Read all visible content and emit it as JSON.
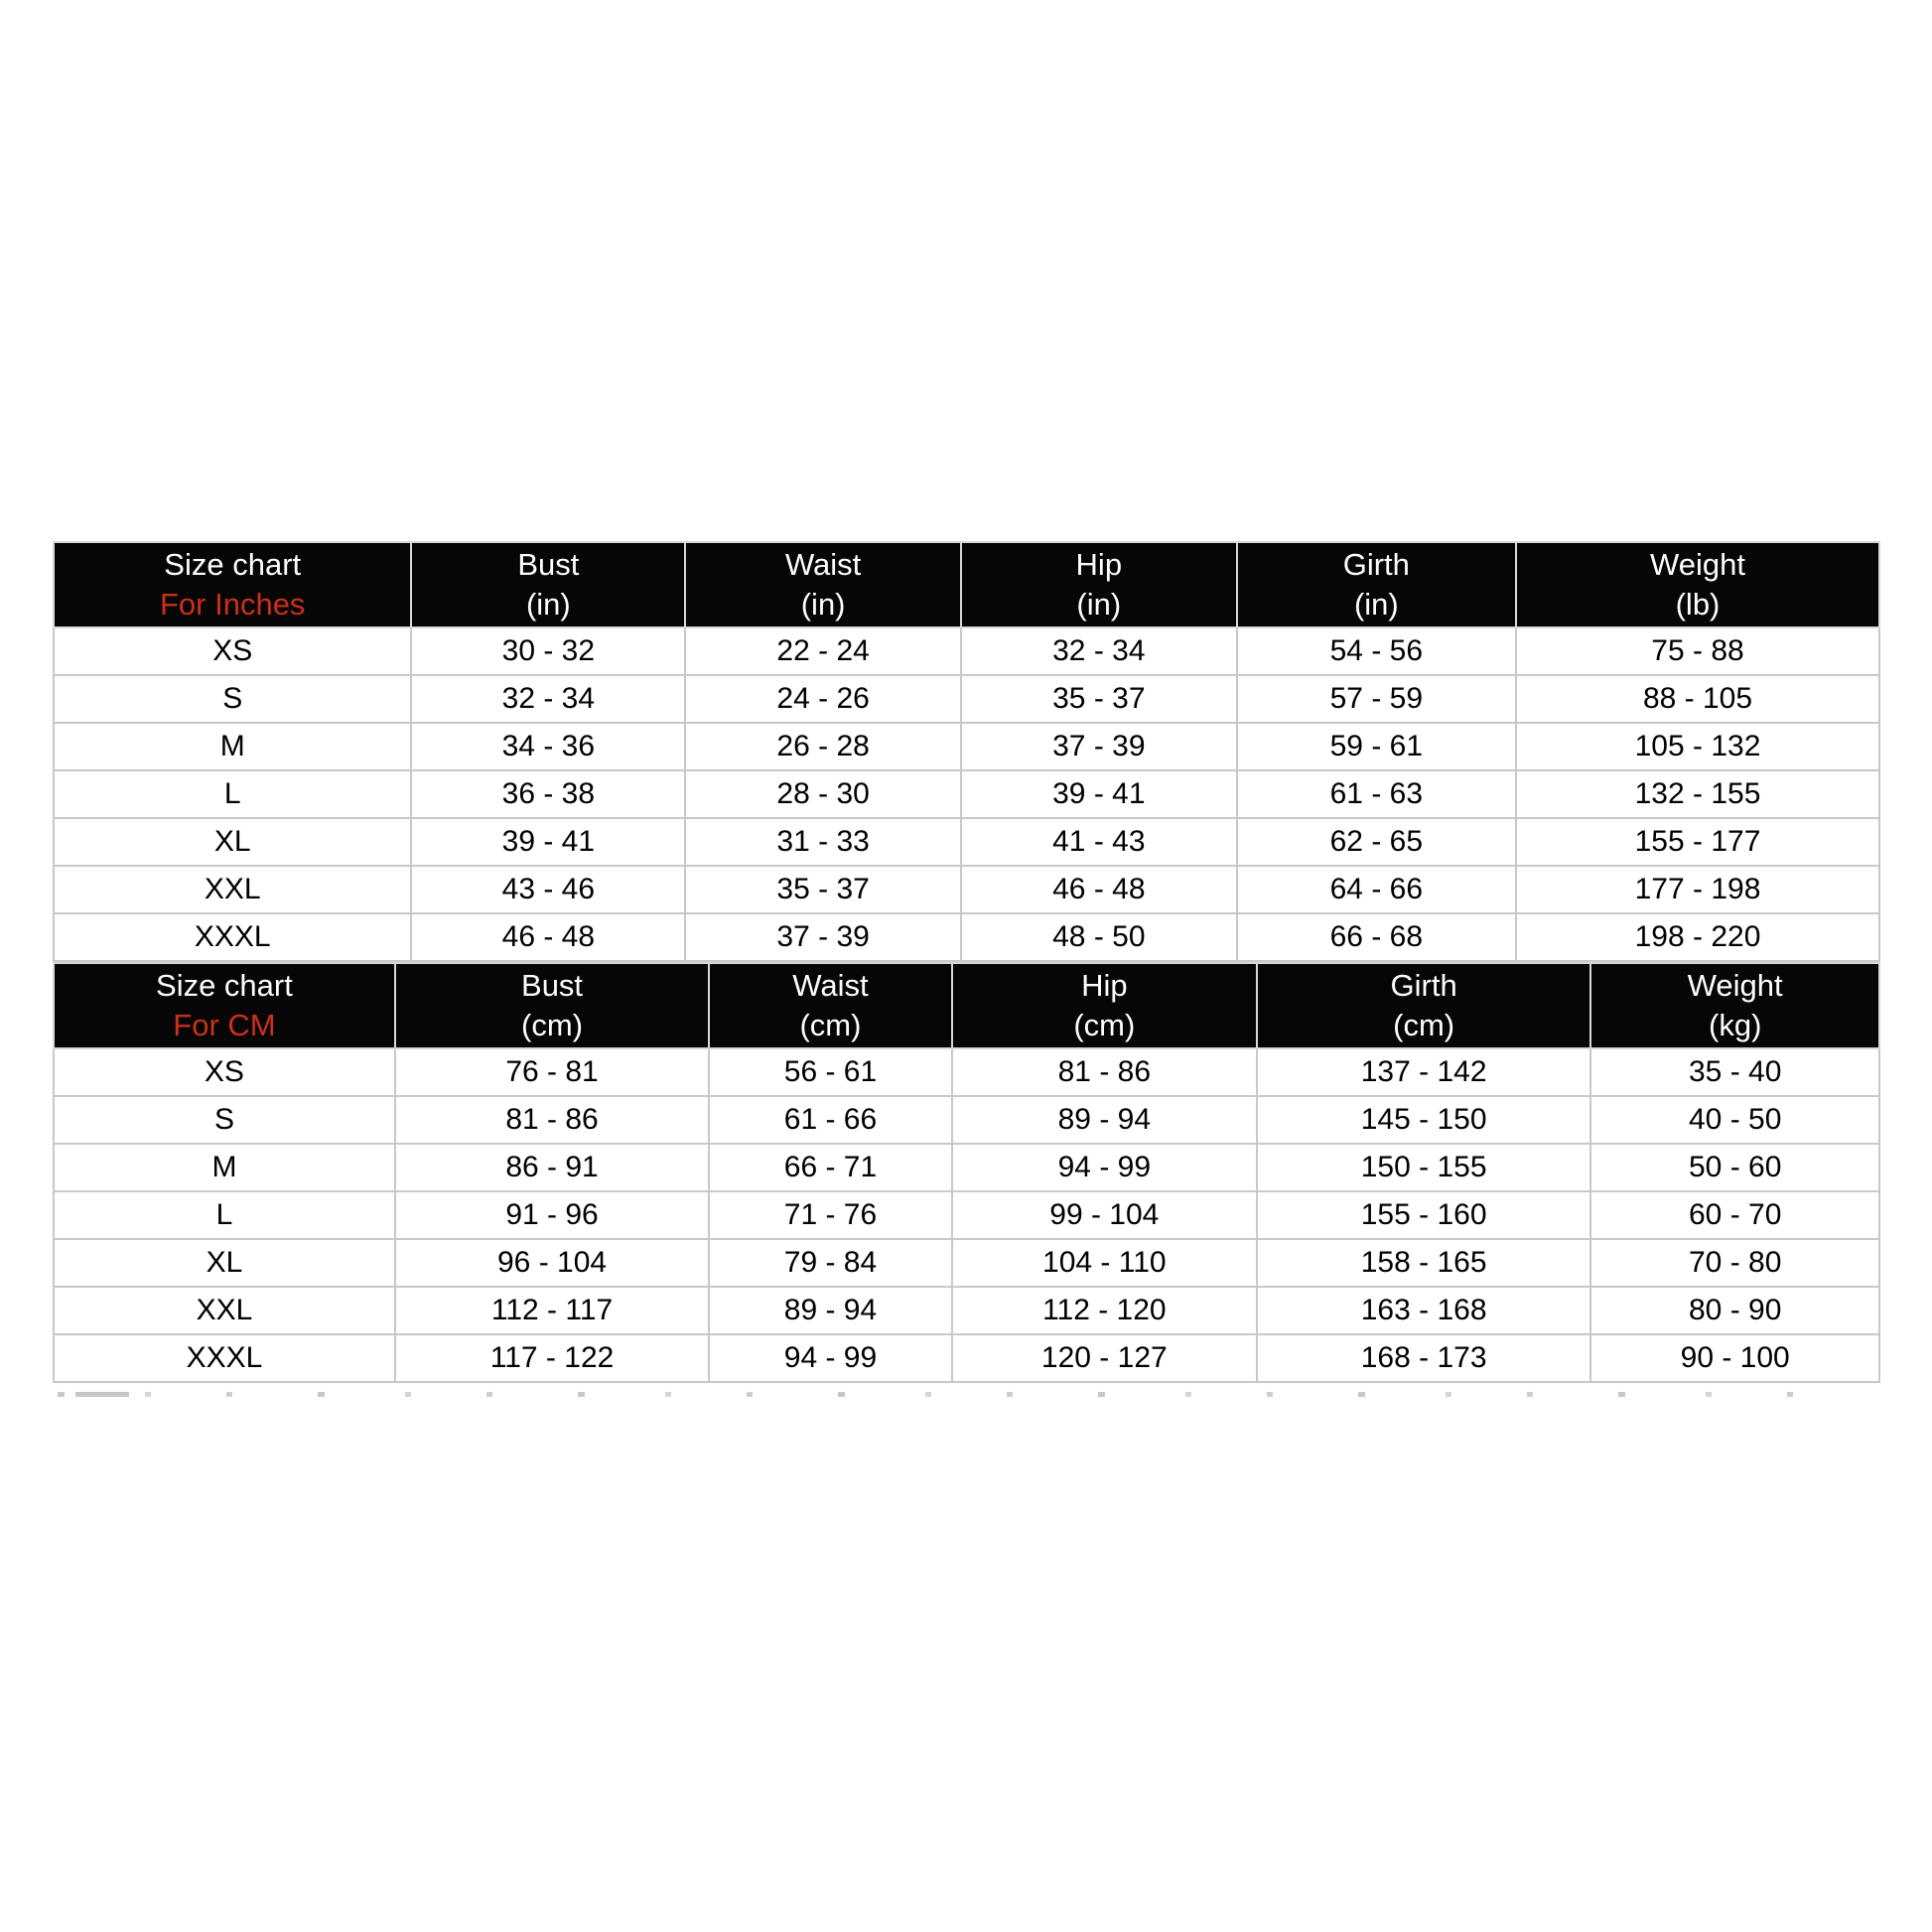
{
  "page": {
    "background_color": "#ffffff"
  },
  "colors": {
    "header_bg": "#060606",
    "header_text": "#ffffff",
    "accent_red": "#cc3018",
    "grid_line": "#c8c8c8",
    "cell_text": "#000000"
  },
  "tables": [
    {
      "name": "inches",
      "title_line1": "Size chart",
      "title_line2": "For Inches",
      "columns": [
        {
          "label": "Bust",
          "unit": "(in)"
        },
        {
          "label": "Waist",
          "unit": "(in)"
        },
        {
          "label": "Hip",
          "unit": "(in)"
        },
        {
          "label": "Girth",
          "unit": "(in)"
        },
        {
          "label": "Weight",
          "unit": "(lb)"
        }
      ],
      "col_widths": [
        "19.6%",
        "15.0%",
        "15.1%",
        "15.1%",
        "15.3%",
        "19.9%"
      ],
      "rows": [
        {
          "size": "XS",
          "values": [
            "30 - 32",
            "22 - 24",
            "32 - 34",
            "54 - 56",
            "75 - 88"
          ]
        },
        {
          "size": "S",
          "values": [
            "32 - 34",
            "24 - 26",
            "35 - 37",
            "57 - 59",
            "88 - 105"
          ]
        },
        {
          "size": "M",
          "values": [
            "34 - 36",
            "26 - 28",
            "37 - 39",
            "59 - 61",
            "105 - 132"
          ]
        },
        {
          "size": "L",
          "values": [
            "36 - 38",
            "28 - 30",
            "39 - 41",
            "61 - 63",
            "132 - 155"
          ]
        },
        {
          "size": "XL",
          "values": [
            "39 - 41",
            "31 - 33",
            "41 - 43",
            "62 - 65",
            "155 - 177"
          ]
        },
        {
          "size": "XXL",
          "values": [
            "43 - 46",
            "35 - 37",
            "46 - 48",
            "64 - 66",
            "177 - 198"
          ]
        },
        {
          "size": "XXXL",
          "values": [
            "46 - 48",
            "37 - 39",
            "48 - 50",
            "66 - 68",
            "198 - 220"
          ]
        }
      ]
    },
    {
      "name": "cm",
      "title_line1": "Size chart",
      "title_line2": "For CM",
      "columns": [
        {
          "label": "Bust",
          "unit": "(cm)"
        },
        {
          "label": "Waist",
          "unit": "(cm)"
        },
        {
          "label": "Hip",
          "unit": "(cm)"
        },
        {
          "label": "Girth",
          "unit": "(cm)"
        },
        {
          "label": "Weight",
          "unit": "(kg)"
        }
      ],
      "col_widths": [
        "18.7%",
        "17.2%",
        "13.3%",
        "16.7%",
        "18.3%",
        "15.8%"
      ],
      "rows": [
        {
          "size": "XS",
          "values": [
            "76 - 81",
            "56 - 61",
            "81 - 86",
            "137 - 142",
            "35 - 40"
          ]
        },
        {
          "size": "S",
          "values": [
            "81 - 86",
            "61 - 66",
            "89 - 94",
            "145 - 150",
            "40 - 50"
          ]
        },
        {
          "size": "M",
          "values": [
            "86 - 91",
            "66 - 71",
            "94 - 99",
            "150 - 155",
            "50 - 60"
          ]
        },
        {
          "size": "L",
          "values": [
            "91 - 96",
            "71 - 76",
            "99 - 104",
            "155 - 160",
            "60 - 70"
          ]
        },
        {
          "size": "XL",
          "values": [
            "96 - 104",
            "79 - 84",
            "104 - 110",
            "158 - 165",
            "70 - 80"
          ]
        },
        {
          "size": "XXL",
          "values": [
            "112 - 117",
            "89 - 94",
            "112 - 120",
            "163 - 168",
            "80 - 90"
          ]
        },
        {
          "size": "XXXL",
          "values": [
            "117 - 122",
            "94 - 99",
            "120 - 127",
            "168 - 173",
            "90 - 100"
          ]
        }
      ]
    }
  ]
}
